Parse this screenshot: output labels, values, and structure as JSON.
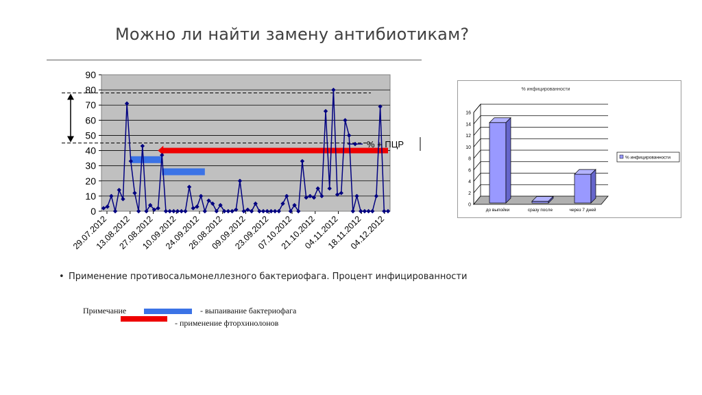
{
  "slide": {
    "title": "Можно ли найти замену антибиотикам?",
    "bullet": "Применение противосальмонеллезного бактериофага. Процент инфицированности"
  },
  "colors": {
    "line": "#000080",
    "plot_bg": "#c0c0c0",
    "phage_bar": "#3b73e6",
    "fluoro_bar": "#ee0000",
    "bar3d": "#9999ff"
  },
  "notes": {
    "title": "Примечание",
    "phage": "- выпаивание бактериофага",
    "fluoro": "- применение фторхинолонов"
  },
  "chart_data": [
    {
      "type": "line",
      "title": "",
      "xlabel": "",
      "ylabel": "",
      "ylim": [
        0,
        90
      ],
      "yticks": [
        "0",
        "10",
        "20",
        "30",
        "40",
        "50",
        "60",
        "70",
        "80",
        "90"
      ],
      "grid": true,
      "legend_position": "right",
      "xtick_labels": [
        "29.07.2012",
        "13.08.2012",
        "27.08.2012",
        "10.09.2012",
        "24.09.2012",
        "26.08.2012",
        "09.09.2012",
        "23.09.2012",
        "07.10.2012",
        "21.10.2012",
        "04.11.2012",
        "18.11.2012",
        "04.12.2012"
      ],
      "series": [
        {
          "name": "% + ПЦР",
          "values": [
            2,
            3,
            10,
            0,
            14,
            8,
            71,
            33,
            12,
            0,
            43,
            0,
            4,
            1,
            2,
            37,
            0,
            0,
            0,
            0,
            0,
            0,
            16,
            2,
            3,
            10,
            0,
            7,
            5,
            0,
            4,
            0,
            0,
            0,
            1,
            20,
            0,
            1,
            0,
            5,
            0,
            0,
            0,
            0,
            0,
            0,
            5,
            10,
            0,
            4,
            0,
            33,
            9,
            10,
            9,
            15,
            10,
            66,
            15,
            80,
            11,
            12,
            60,
            50,
            0,
            10,
            0,
            0,
            0,
            0,
            10,
            69,
            0,
            0
          ]
        }
      ],
      "annotations": {
        "dashed_levels": [
          78,
          45
        ],
        "range_arrow": [
          78,
          45
        ],
        "phage_bars": [
          {
            "from_index": 7,
            "to_index": 15,
            "y": 34
          },
          {
            "from_index": 15,
            "to_index": 26,
            "y": 26
          }
        ],
        "fluoro_bar": {
          "from_index": 15,
          "to_index": 73,
          "y": 40
        }
      }
    },
    {
      "type": "bar",
      "title": "% инфицированности",
      "categories": [
        "до выпойки",
        "сразу после",
        "через 7 дней"
      ],
      "series": [
        {
          "name": "% инфицированности",
          "values": [
            14,
            0.3,
            5
          ]
        }
      ],
      "ylim": [
        0,
        16
      ],
      "yticks": [
        "0",
        "2",
        "4",
        "6",
        "8",
        "10",
        "12",
        "14",
        "16"
      ],
      "grid": true,
      "legend_position": "right"
    }
  ]
}
